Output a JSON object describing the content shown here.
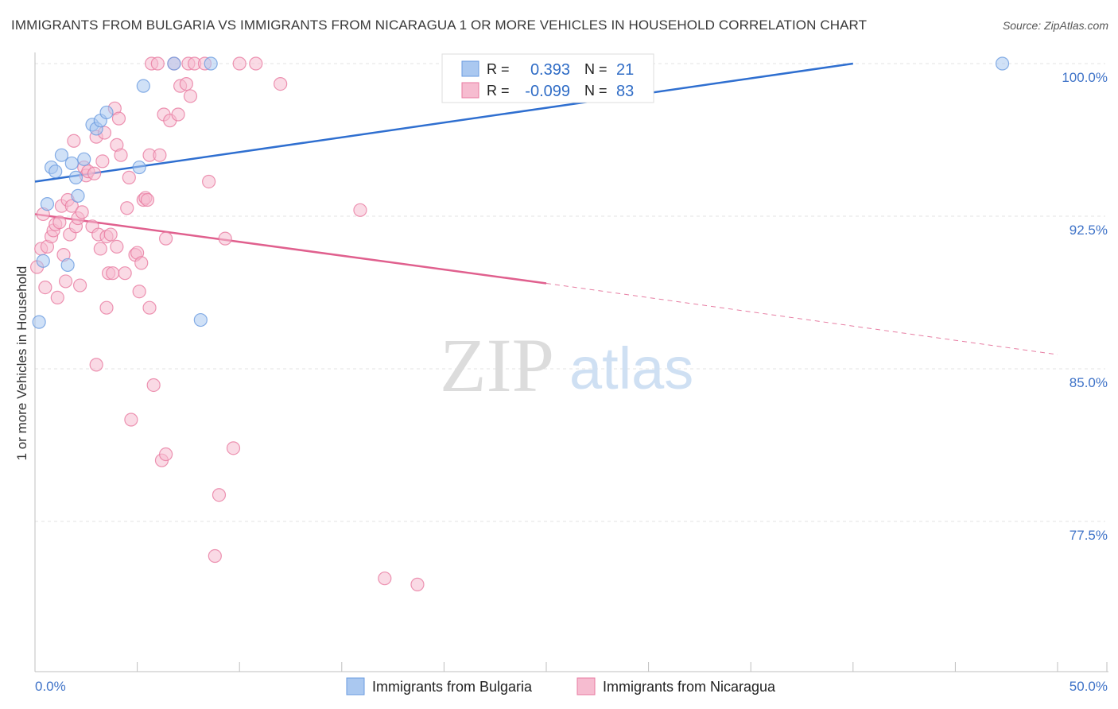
{
  "source": "Source: ZipAtlas.com",
  "chart_data": {
    "type": "scatter",
    "title": "IMMIGRANTS FROM BULGARIA VS IMMIGRANTS FROM NICARAGUA 1 OR MORE VEHICLES IN HOUSEHOLD CORRELATION CHART",
    "xlabel": "",
    "ylabel": "1 or more Vehicles in Household",
    "xlim": [
      0,
      50
    ],
    "ylim": [
      70.5,
      101.5
    ],
    "x_tick_labels": [
      "0.0%",
      "50.0%"
    ],
    "y_ticks": [
      77.5,
      85.0,
      92.5,
      100.0
    ],
    "y_tick_labels": [
      "77.5%",
      "85.0%",
      "92.5%",
      "100.0%"
    ],
    "grid": true,
    "legend_position": "top-center",
    "watermark": {
      "zip": "ZIP",
      "atlas": "atlas"
    },
    "series": [
      {
        "name": "Immigrants from Bulgaria",
        "color": "#6a9be0",
        "fill": "#aac8f0",
        "R": "0.393",
        "N": "21",
        "r_label": "R =",
        "n_label": "N =",
        "trend": {
          "x": [
            0,
            40
          ],
          "y": [
            94.2,
            100.0
          ],
          "style": "solid"
        },
        "points": [
          [
            0.2,
            87.3
          ],
          [
            0.4,
            90.3
          ],
          [
            0.6,
            93.1
          ],
          [
            0.8,
            94.9
          ],
          [
            1.0,
            94.7
          ],
          [
            1.3,
            95.5
          ],
          [
            1.6,
            90.1
          ],
          [
            1.8,
            95.1
          ],
          [
            2.0,
            94.4
          ],
          [
            2.1,
            93.5
          ],
          [
            2.4,
            95.3
          ],
          [
            2.8,
            97.0
          ],
          [
            3.0,
            96.8
          ],
          [
            3.2,
            97.2
          ],
          [
            3.5,
            97.6
          ],
          [
            5.1,
            94.9
          ],
          [
            5.3,
            98.9
          ],
          [
            6.8,
            100.0
          ],
          [
            8.1,
            87.4
          ],
          [
            8.6,
            100.0
          ],
          [
            47.3,
            100.0
          ]
        ]
      },
      {
        "name": "Immigrants from Nicaragua",
        "color": "#e87aa0",
        "fill": "#f6bcd0",
        "R": "-0.099",
        "N": "83",
        "r_label": "R =",
        "n_label": "N =",
        "trend": {
          "x": [
            0,
            25
          ],
          "y": [
            92.6,
            89.2
          ],
          "style": "solid"
        },
        "trend_ext": {
          "x": [
            25,
            50
          ],
          "y": [
            89.2,
            85.7
          ],
          "style": "dashed"
        },
        "points": [
          [
            0.1,
            90.0
          ],
          [
            0.3,
            90.9
          ],
          [
            0.4,
            92.6
          ],
          [
            0.5,
            89.0
          ],
          [
            0.6,
            91.0
          ],
          [
            0.8,
            91.5
          ],
          [
            0.9,
            91.8
          ],
          [
            1.0,
            92.1
          ],
          [
            1.1,
            88.5
          ],
          [
            1.2,
            92.2
          ],
          [
            1.3,
            93.0
          ],
          [
            1.4,
            90.6
          ],
          [
            1.5,
            89.3
          ],
          [
            1.6,
            93.3
          ],
          [
            1.7,
            91.6
          ],
          [
            1.8,
            93.0
          ],
          [
            1.9,
            96.2
          ],
          [
            2.0,
            92.0
          ],
          [
            2.1,
            92.4
          ],
          [
            2.2,
            89.1
          ],
          [
            2.3,
            92.7
          ],
          [
            2.4,
            94.9
          ],
          [
            2.5,
            94.5
          ],
          [
            2.6,
            94.7
          ],
          [
            2.8,
            92.0
          ],
          [
            2.9,
            94.6
          ],
          [
            3.0,
            96.4
          ],
          [
            3.0,
            85.2
          ],
          [
            3.1,
            91.6
          ],
          [
            3.2,
            90.9
          ],
          [
            3.3,
            95.2
          ],
          [
            3.4,
            96.6
          ],
          [
            3.5,
            91.5
          ],
          [
            3.5,
            88.0
          ],
          [
            3.6,
            89.7
          ],
          [
            3.7,
            91.6
          ],
          [
            3.8,
            89.7
          ],
          [
            3.9,
            97.8
          ],
          [
            4.0,
            91.0
          ],
          [
            4.0,
            96.0
          ],
          [
            4.1,
            97.3
          ],
          [
            4.2,
            95.5
          ],
          [
            4.4,
            89.7
          ],
          [
            4.5,
            92.9
          ],
          [
            4.6,
            94.4
          ],
          [
            4.7,
            82.5
          ],
          [
            4.9,
            90.6
          ],
          [
            5.0,
            90.7
          ],
          [
            5.1,
            88.8
          ],
          [
            5.2,
            90.2
          ],
          [
            5.3,
            93.3
          ],
          [
            5.4,
            93.4
          ],
          [
            5.5,
            93.3
          ],
          [
            5.6,
            95.5
          ],
          [
            5.6,
            88.0
          ],
          [
            5.7,
            100.0
          ],
          [
            5.8,
            84.2
          ],
          [
            6.0,
            100.0
          ],
          [
            6.1,
            95.5
          ],
          [
            6.2,
            80.5
          ],
          [
            6.3,
            97.5
          ],
          [
            6.4,
            91.4
          ],
          [
            6.4,
            80.8
          ],
          [
            6.6,
            97.2
          ],
          [
            6.8,
            100.0
          ],
          [
            7.0,
            97.5
          ],
          [
            7.1,
            98.9
          ],
          [
            7.4,
            99.0
          ],
          [
            7.5,
            100.0
          ],
          [
            7.6,
            98.4
          ],
          [
            7.8,
            100.0
          ],
          [
            8.3,
            100.0
          ],
          [
            8.5,
            94.2
          ],
          [
            8.8,
            75.8
          ],
          [
            9.0,
            78.8
          ],
          [
            9.3,
            91.4
          ],
          [
            9.7,
            81.1
          ],
          [
            10.0,
            100.0
          ],
          [
            10.8,
            100.0
          ],
          [
            12.0,
            99.0
          ],
          [
            15.9,
            92.8
          ],
          [
            17.1,
            74.7
          ],
          [
            18.7,
            74.4
          ]
        ]
      }
    ]
  }
}
